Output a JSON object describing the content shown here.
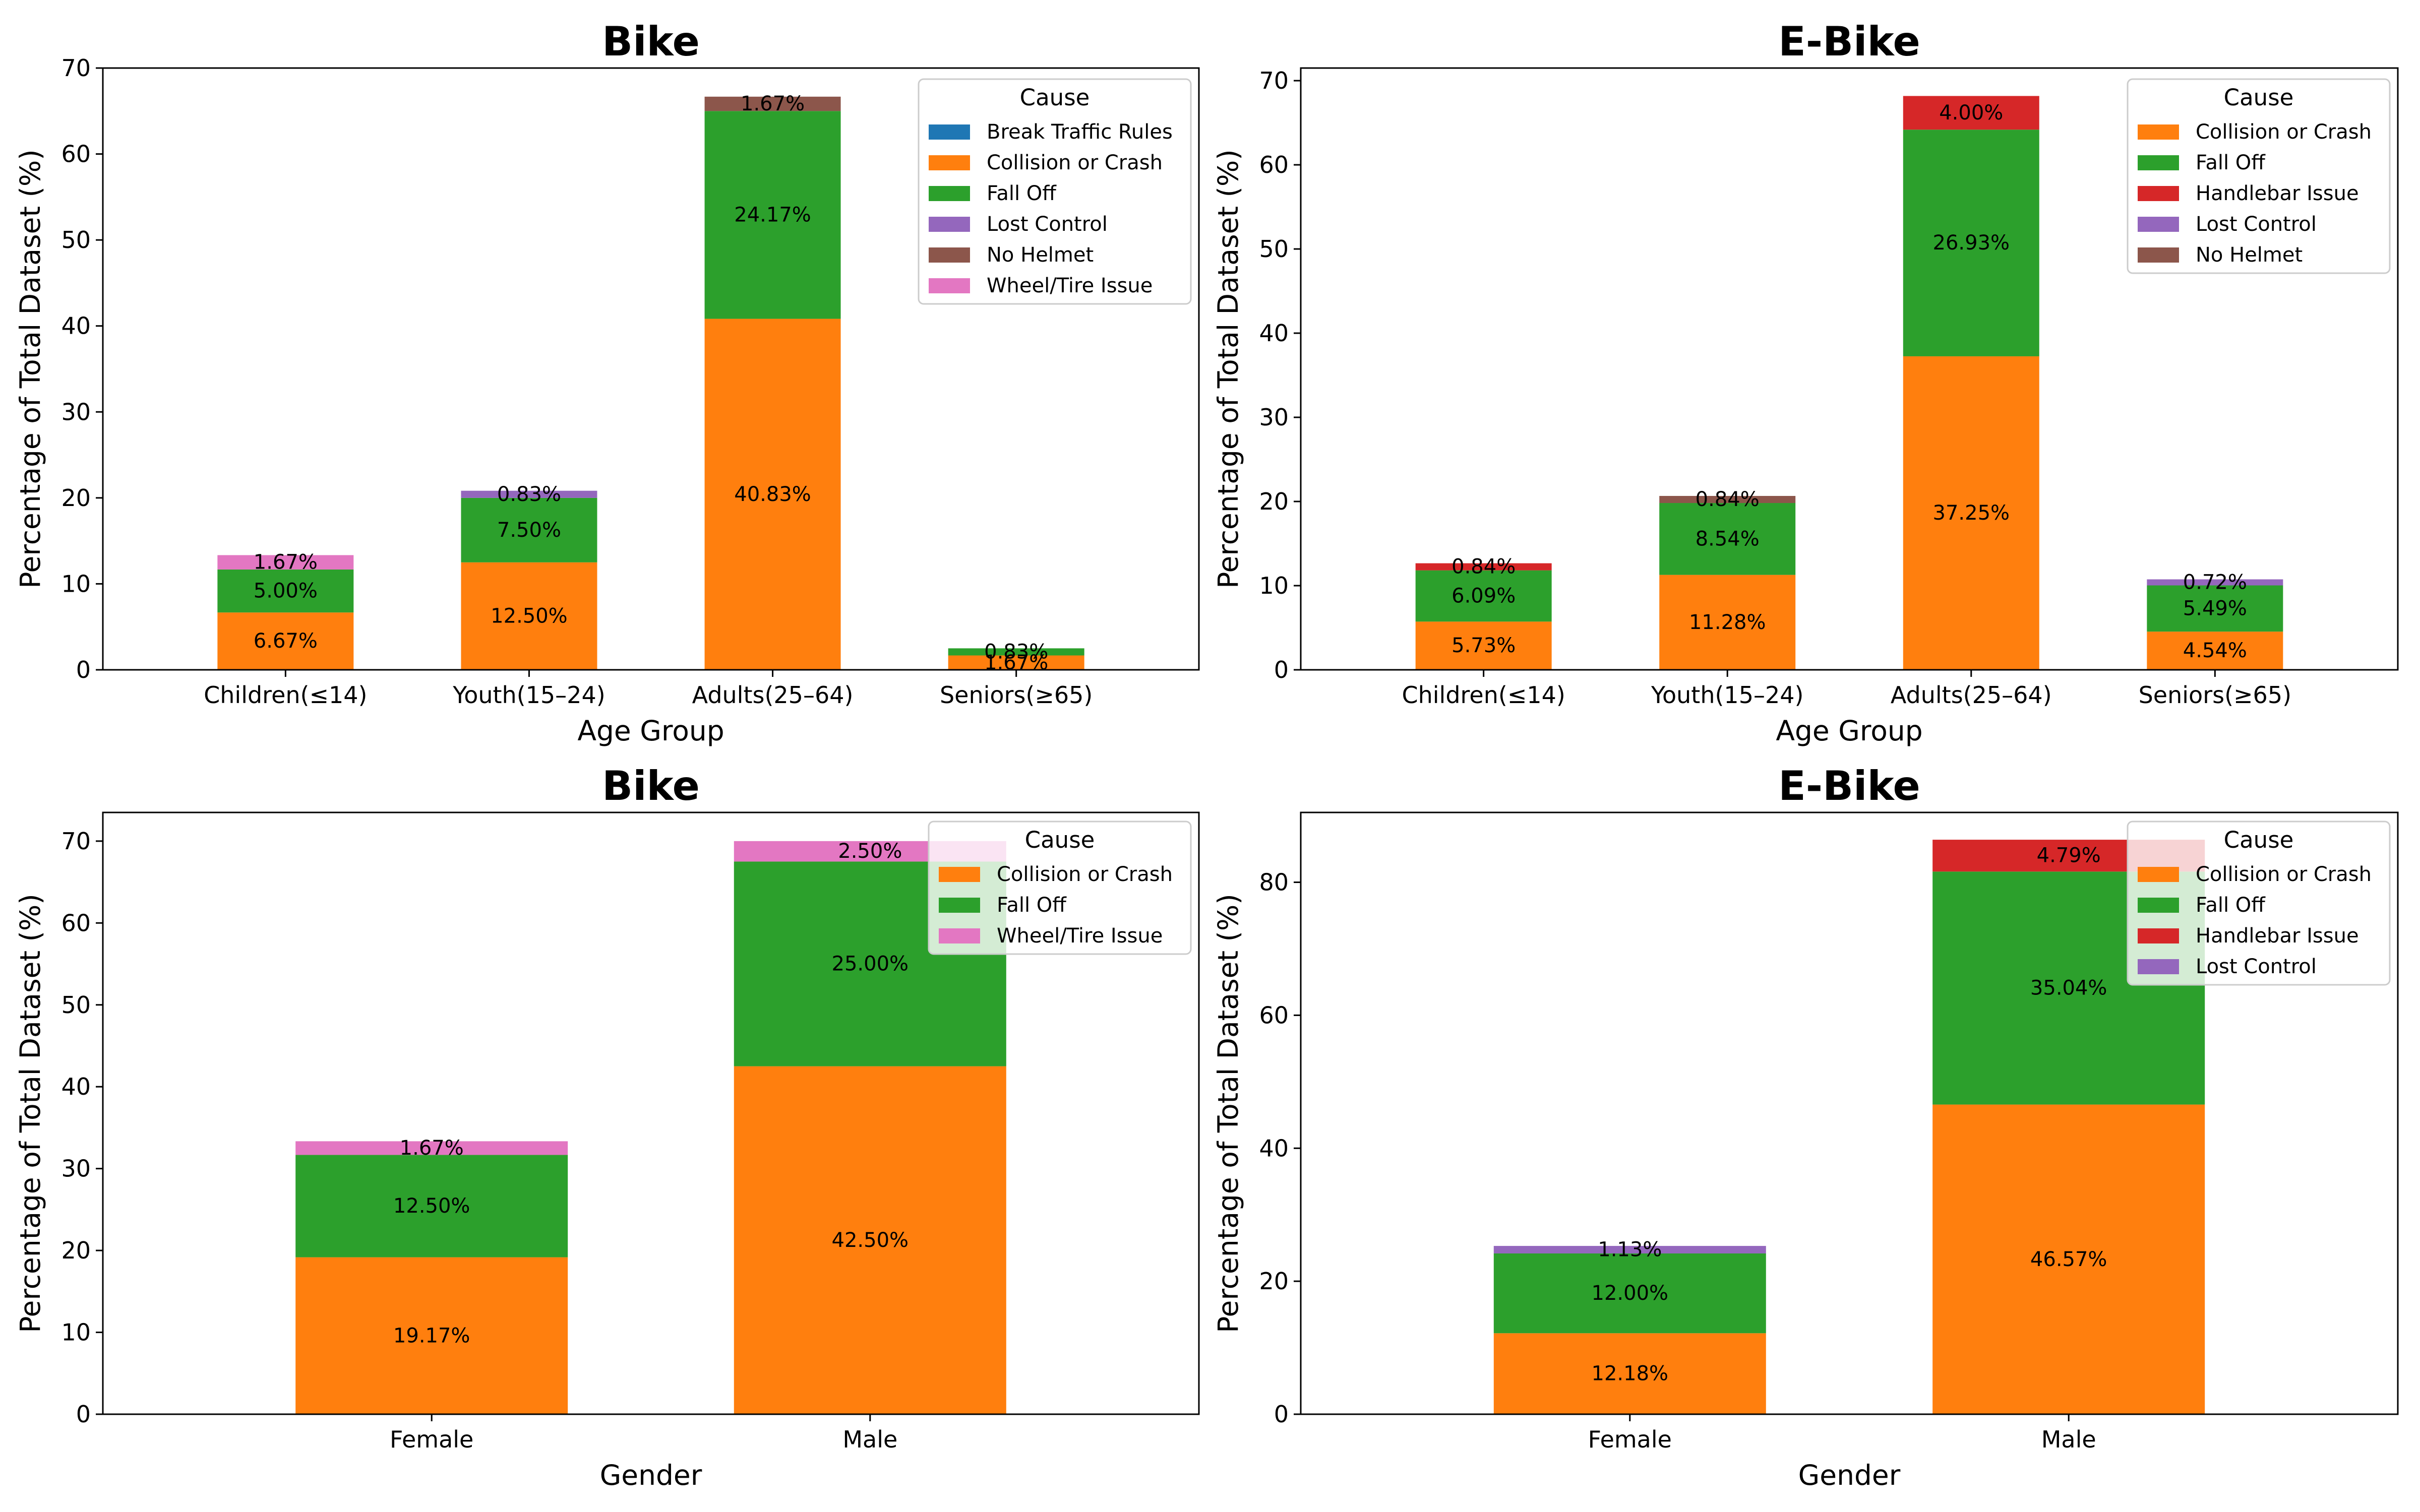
{
  "colors": {
    "Break Traffic Rules": "#1f77b4",
    "Collision or Crash": "#ff7f0e",
    "Fall Off": "#2ca02c",
    "Handlebar Issue": "#d62728",
    "Lost Control": "#9467bd",
    "No Helmet": "#8c564b",
    "Wheel/Tire Issue": "#e377c2"
  },
  "chart_data": [
    {
      "type": "bar",
      "stacked": true,
      "title": "Bike",
      "xlabel": "Age Group",
      "ylabel": "Percentage of Total Dataset (%)",
      "ylim": [
        0,
        70
      ],
      "yticks": [
        0,
        10,
        20,
        30,
        40,
        50,
        60,
        70
      ],
      "categories": [
        "Children(≤14)",
        "Youth(15–24)",
        "Adults(25–64)",
        "Seniors(≥65)"
      ],
      "legend_title": "Cause",
      "legend_position": "top-right",
      "legend_entries": [
        "Break Traffic Rules",
        "Collision or Crash",
        "Fall Off",
        "Lost Control",
        "No Helmet",
        "Wheel/Tire Issue"
      ],
      "series": [
        {
          "name": "Break Traffic Rules",
          "values": [
            0,
            0,
            0,
            0
          ],
          "labels": [
            "",
            "",
            "",
            ""
          ]
        },
        {
          "name": "Collision or Crash",
          "values": [
            6.67,
            12.5,
            40.83,
            1.67
          ],
          "labels": [
            "6.67%",
            "12.50%",
            "40.83%",
            "1.67%"
          ]
        },
        {
          "name": "Fall Off",
          "values": [
            5.0,
            7.5,
            24.17,
            0.83
          ],
          "labels": [
            "5.00%",
            "7.50%",
            "24.17%",
            "0.83%"
          ]
        },
        {
          "name": "Lost Control",
          "values": [
            0,
            0.83,
            0,
            0
          ],
          "labels": [
            "",
            "0.83%",
            "",
            ""
          ]
        },
        {
          "name": "No Helmet",
          "values": [
            0,
            0,
            1.67,
            0
          ],
          "labels": [
            "",
            "",
            "1.67%",
            ""
          ]
        },
        {
          "name": "Wheel/Tire Issue",
          "values": [
            1.67,
            0,
            0,
            0
          ],
          "labels": [
            "1.67%",
            "",
            "",
            ""
          ]
        }
      ]
    },
    {
      "type": "bar",
      "stacked": true,
      "title": "E-Bike",
      "xlabel": "Age Group",
      "ylabel": "Percentage of Total Dataset (%)",
      "ylim": [
        0,
        71.5
      ],
      "yticks": [
        0,
        10,
        20,
        30,
        40,
        50,
        60,
        70
      ],
      "categories": [
        "Children(≤14)",
        "Youth(15–24)",
        "Adults(25–64)",
        "Seniors(≥65)"
      ],
      "legend_title": "Cause",
      "legend_position": "top-right",
      "legend_entries": [
        "Collision or Crash",
        "Fall Off",
        "Handlebar Issue",
        "Lost Control",
        "No Helmet"
      ],
      "series": [
        {
          "name": "Collision or Crash",
          "values": [
            5.73,
            11.28,
            37.25,
            4.54
          ],
          "labels": [
            "5.73%",
            "11.28%",
            "37.25%",
            "4.54%"
          ]
        },
        {
          "name": "Fall Off",
          "values": [
            6.09,
            8.54,
            26.93,
            5.49
          ],
          "labels": [
            "6.09%",
            "8.54%",
            "26.93%",
            "5.49%"
          ]
        },
        {
          "name": "Handlebar Issue",
          "values": [
            0.84,
            0,
            4.0,
            0
          ],
          "labels": [
            "0.84%",
            "",
            "4.00%",
            ""
          ]
        },
        {
          "name": "Lost Control",
          "values": [
            0,
            0,
            0,
            0.72
          ],
          "labels": [
            "",
            "",
            "",
            "0.72%"
          ]
        },
        {
          "name": "No Helmet",
          "values": [
            0,
            0.84,
            0,
            0
          ],
          "labels": [
            "",
            "0.84%",
            "",
            ""
          ]
        }
      ]
    },
    {
      "type": "bar",
      "stacked": true,
      "title": "Bike",
      "xlabel": "Gender",
      "ylabel": "Percentage of Total Dataset (%)",
      "ylim": [
        0,
        73.5
      ],
      "yticks": [
        0,
        10,
        20,
        30,
        40,
        50,
        60,
        70
      ],
      "categories": [
        "Female",
        "Male"
      ],
      "legend_title": "Cause",
      "legend_position": "top-right",
      "legend_entries": [
        "Collision or Crash",
        "Fall Off",
        "Wheel/Tire Issue"
      ],
      "series": [
        {
          "name": "Collision or Crash",
          "values": [
            19.17,
            42.5
          ],
          "labels": [
            "19.17%",
            "42.50%"
          ]
        },
        {
          "name": "Fall Off",
          "values": [
            12.5,
            25.0
          ],
          "labels": [
            "12.50%",
            "25.00%"
          ]
        },
        {
          "name": "Wheel/Tire Issue",
          "values": [
            1.67,
            2.5
          ],
          "labels": [
            "1.67%",
            "2.50%"
          ]
        }
      ]
    },
    {
      "type": "bar",
      "stacked": true,
      "title": "E-Bike",
      "xlabel": "Gender",
      "ylabel": "Percentage of Total Dataset (%)",
      "ylim": [
        0,
        90.5
      ],
      "yticks": [
        0,
        20,
        40,
        60,
        80
      ],
      "categories": [
        "Female",
        "Male"
      ],
      "legend_title": "Cause",
      "legend_position": "top-right",
      "legend_entries": [
        "Collision or Crash",
        "Fall Off",
        "Handlebar Issue",
        "Lost Control"
      ],
      "series": [
        {
          "name": "Collision or Crash",
          "values": [
            12.18,
            46.57
          ],
          "labels": [
            "12.18%",
            "46.57%"
          ]
        },
        {
          "name": "Fall Off",
          "values": [
            12.0,
            35.04
          ],
          "labels": [
            "12.00%",
            "35.04%"
          ]
        },
        {
          "name": "Handlebar Issue",
          "values": [
            0,
            4.79
          ],
          "labels": [
            "",
            "4.79%"
          ]
        },
        {
          "name": "Lost Control",
          "values": [
            1.13,
            0
          ],
          "labels": [
            "1.13%",
            ""
          ]
        }
      ]
    }
  ]
}
